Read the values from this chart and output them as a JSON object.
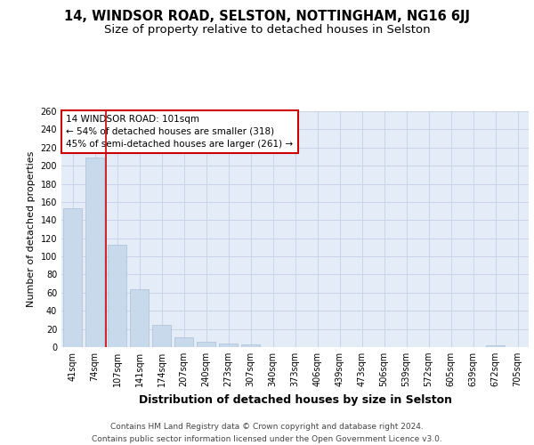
{
  "title1": "14, WINDSOR ROAD, SELSTON, NOTTINGHAM, NG16 6JJ",
  "title2": "Size of property relative to detached houses in Selston",
  "xlabel": "Distribution of detached houses by size in Selston",
  "ylabel": "Number of detached properties",
  "categories": [
    "41sqm",
    "74sqm",
    "107sqm",
    "141sqm",
    "174sqm",
    "207sqm",
    "240sqm",
    "273sqm",
    "307sqm",
    "340sqm",
    "373sqm",
    "406sqm",
    "439sqm",
    "473sqm",
    "506sqm",
    "539sqm",
    "572sqm",
    "605sqm",
    "639sqm",
    "672sqm",
    "705sqm"
  ],
  "values": [
    153,
    209,
    113,
    64,
    25,
    11,
    6,
    4,
    3,
    0,
    0,
    0,
    0,
    0,
    0,
    0,
    0,
    0,
    0,
    2,
    0
  ],
  "bar_color": "#c8d9ec",
  "bar_edge_color": "#aabfd8",
  "annotation_box_text": "14 WINDSOR ROAD: 101sqm\n← 54% of detached houses are smaller (318)\n45% of semi-detached houses are larger (261) →",
  "annotation_box_color": "#ffffff",
  "annotation_box_edge_color": "#cc0000",
  "red_line_color": "#cc0000",
  "ylim": [
    0,
    260
  ],
  "yticks": [
    0,
    20,
    40,
    60,
    80,
    100,
    120,
    140,
    160,
    180,
    200,
    220,
    240,
    260
  ],
  "grid_color": "#c8d4e8",
  "background_color": "#e4ecf7",
  "footer_text": "Contains HM Land Registry data © Crown copyright and database right 2024.\nContains public sector information licensed under the Open Government Licence v3.0.",
  "title1_fontsize": 10.5,
  "title2_fontsize": 9.5,
  "xlabel_fontsize": 9,
  "ylabel_fontsize": 8,
  "tick_fontsize": 7,
  "annotation_fontsize": 7.5,
  "footer_fontsize": 6.5
}
